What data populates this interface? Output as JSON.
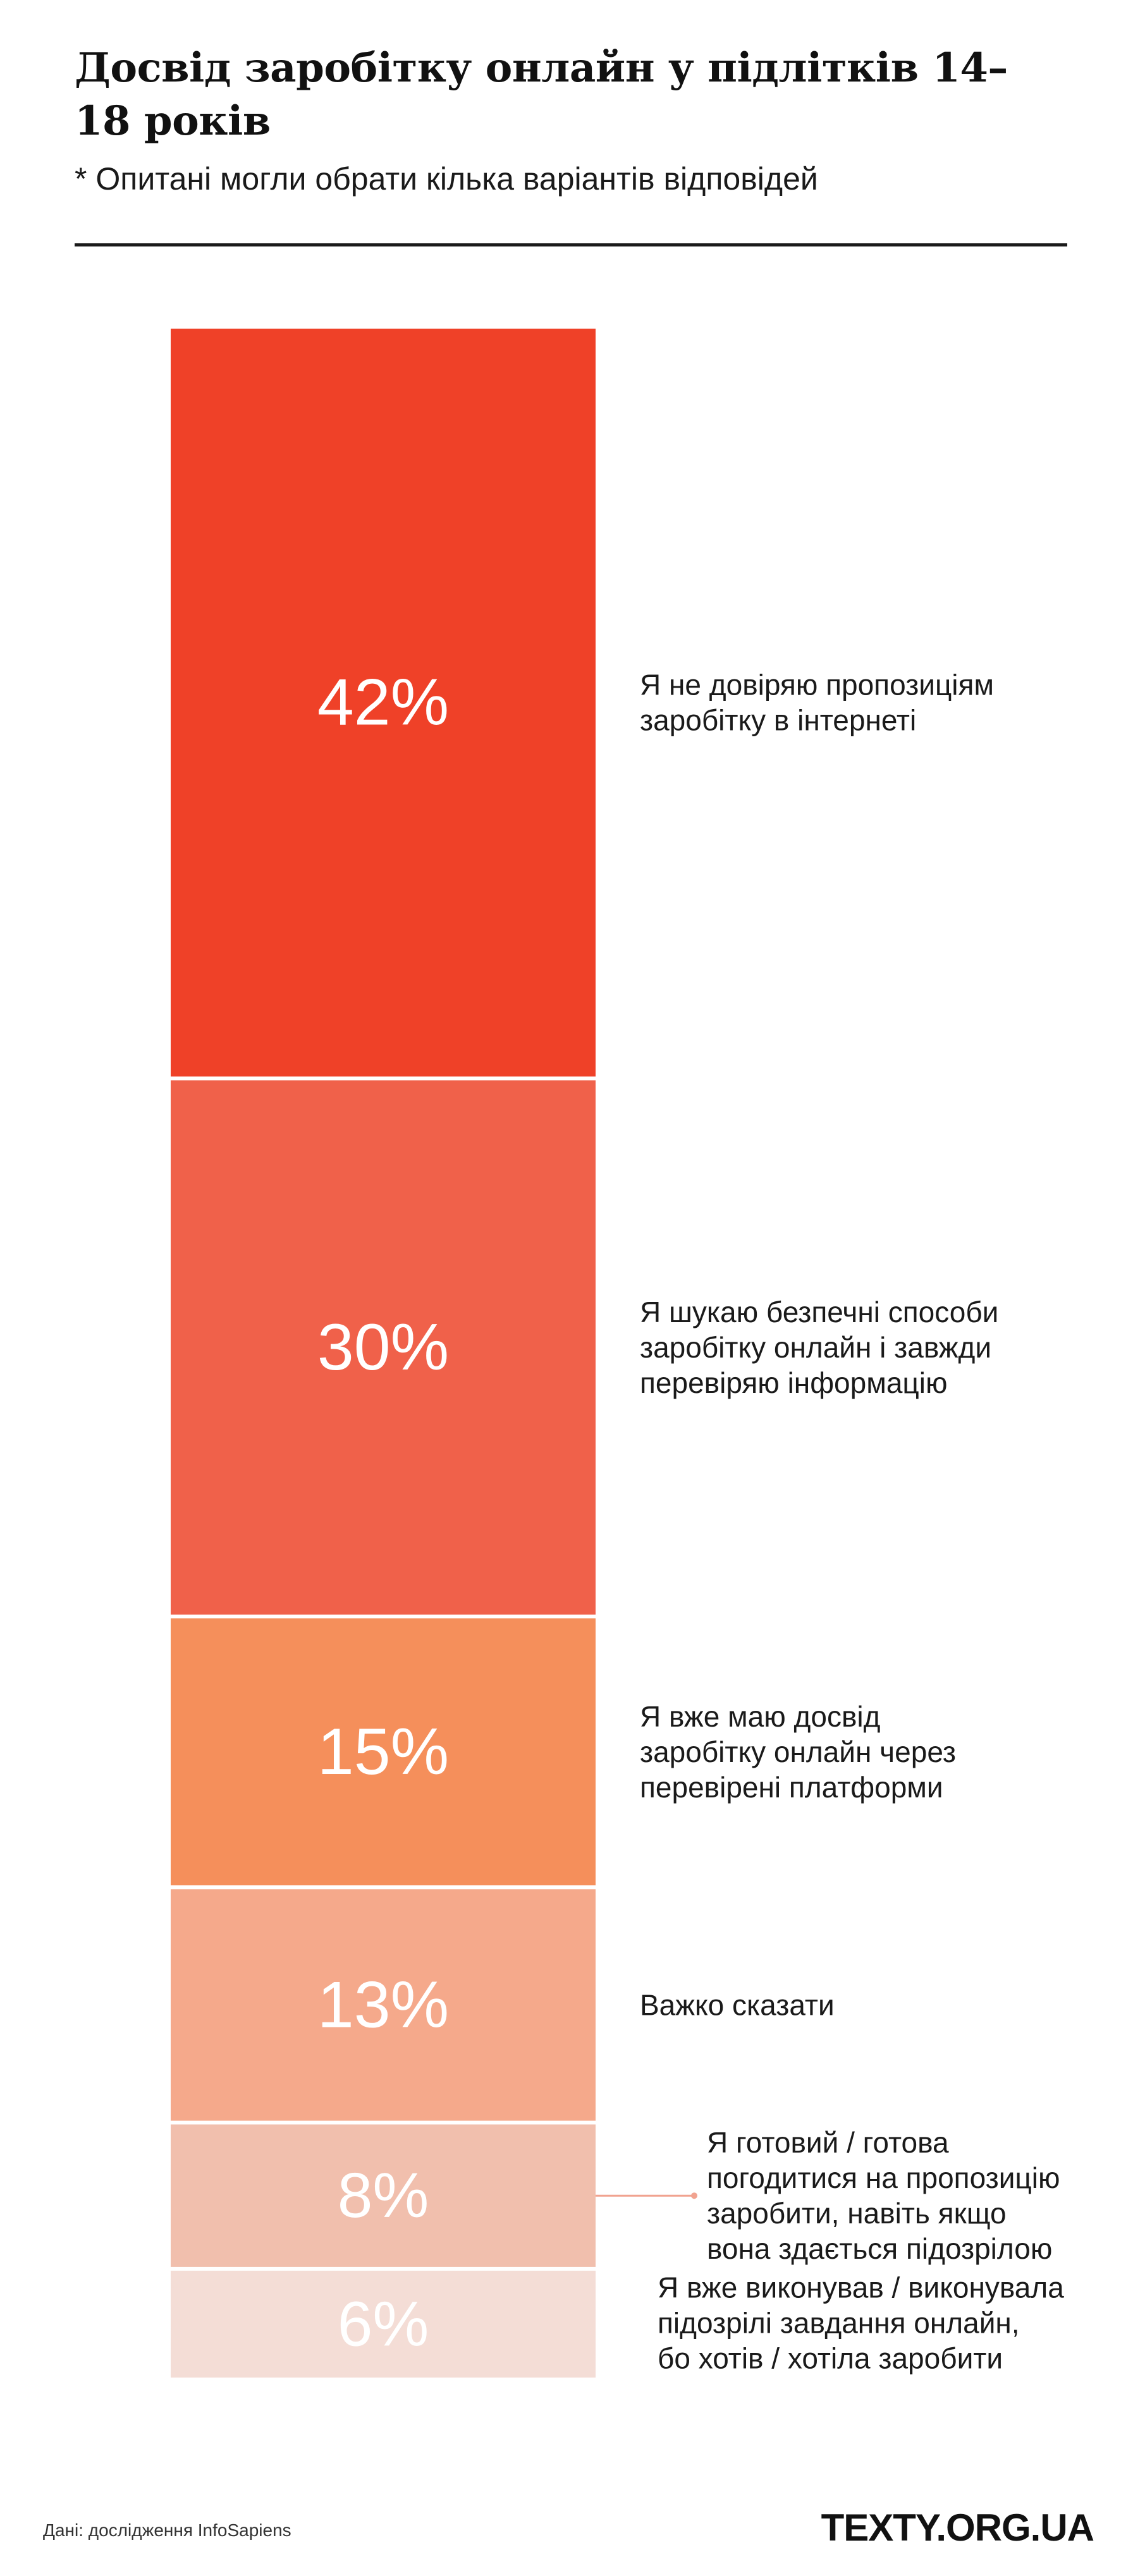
{
  "header": {
    "title": "Досвід заробітку онлайн у підлітків 14–18 років",
    "subtitle": "* Опитані могли обрати кілька варіантів відповідей"
  },
  "footer": {
    "source": "Дані: дослідження InfoSapiens",
    "brand": "TEXTY.ORG.UA"
  },
  "chart_data": {
    "type": "bar",
    "stacked": true,
    "orientation": "vertical",
    "title": "Досвід заробітку онлайн у підлітків 14–18 років",
    "subtitle": "* Опитані могли обрати кілька варіантів відповідей",
    "unit": "%",
    "categories": [
      "Я не довіряю пропозиціям заробітку в інтернеті",
      "Я шукаю безпечні способи заробітку онлайн і завжди перевіряю інформацію",
      "Я вже маю досвід заробітку онлайн через перевірені платформи",
      "Важко сказати",
      "Я готовий / готова погодитися на пропозицію заробити, навіть якщо вона здається підозрілою",
      "Я вже виконував / виконувала підозрілі завдання онлайн, бо хотів / хотіла заробити"
    ],
    "values": [
      42,
      30,
      15,
      13,
      8,
      6
    ],
    "value_labels": [
      "42%",
      "30%",
      "15%",
      "13%",
      "8%",
      "6%"
    ],
    "label_lines": [
      [
        "Я не довіряю пропозиціям",
        "заробітку в інтернеті"
      ],
      [
        "Я шукаю безпечні способи",
        "заробітку онлайн і завжди",
        "перевіряю інформацію"
      ],
      [
        "Я вже маю досвід",
        "заробітку онлайн через",
        "перевірені платформи"
      ],
      [
        "Важко сказати"
      ],
      [
        "Я готовий / готова",
        "погодитися на пропозицію",
        "заробити, навіть якщо",
        "вона здається підозрілою"
      ],
      [
        "Я вже виконував / виконувала",
        "підозрілі завдання онлайн,",
        "бо хотів / хотіла заробити"
      ]
    ],
    "colors": [
      "#ef4128",
      "#f0614a",
      "#f58f5b",
      "#f5a98b",
      "#f1bfad",
      "#f4ddd6"
    ],
    "legend": "right",
    "grid": false
  }
}
